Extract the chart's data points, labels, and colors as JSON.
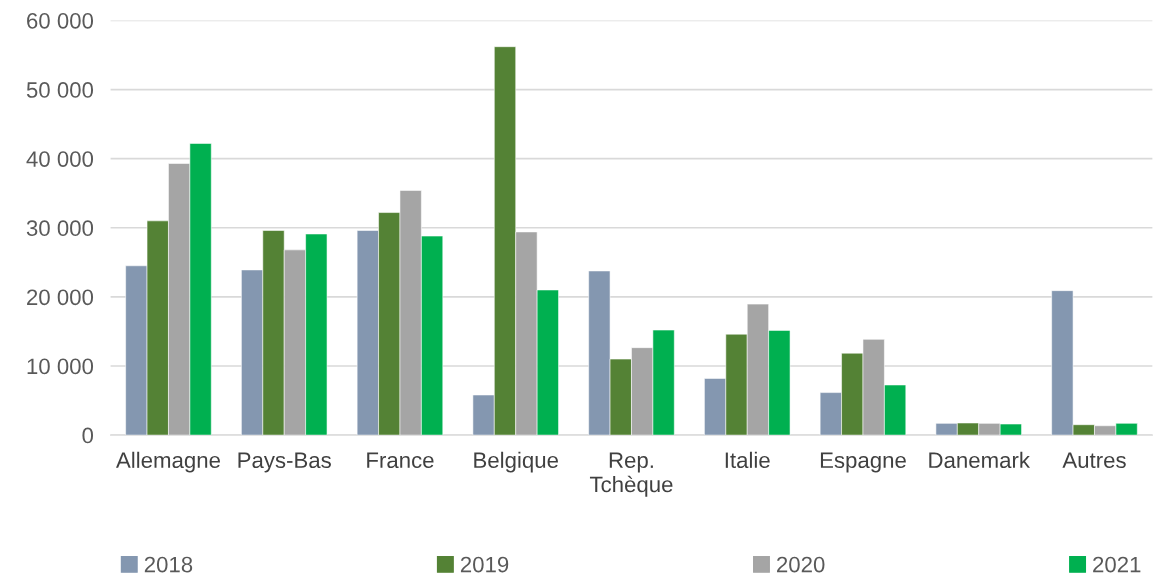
{
  "chart_data": {
    "type": "bar",
    "categories": [
      "Allemagne",
      "Pays-Bas",
      "France",
      "Belgique",
      "Rep.\nTchèque",
      "Italie",
      "Espagne",
      "Danemark",
      "Autres"
    ],
    "series": [
      {
        "name": "2018",
        "color": "#8497b0",
        "values": [
          24500,
          23900,
          29600,
          5800,
          23750,
          8200,
          6150,
          1700,
          20900
        ]
      },
      {
        "name": "2019",
        "color": "#548235",
        "values": [
          31000,
          29600,
          32200,
          56200,
          11000,
          14600,
          11850,
          1750,
          1500
        ]
      },
      {
        "name": "2020",
        "color": "#a5a5a5",
        "values": [
          39300,
          26800,
          35400,
          29400,
          12650,
          18950,
          13850,
          1700,
          1350
        ]
      },
      {
        "name": "2021",
        "color": "#00b050",
        "values": [
          42200,
          29100,
          28800,
          21000,
          15200,
          15150,
          7250,
          1600,
          1700
        ]
      }
    ],
    "ylim": [
      0,
      60000
    ],
    "yticks": [
      {
        "value": 0,
        "label": "0"
      },
      {
        "value": 10000,
        "label": "10 000"
      },
      {
        "value": 20000,
        "label": "20 000"
      },
      {
        "value": 30000,
        "label": "30 000"
      },
      {
        "value": 40000,
        "label": "40 000"
      },
      {
        "value": 50000,
        "label": "50 000"
      },
      {
        "value": 60000,
        "label": "60 000"
      }
    ],
    "grid": "y",
    "legend": "bottom"
  }
}
